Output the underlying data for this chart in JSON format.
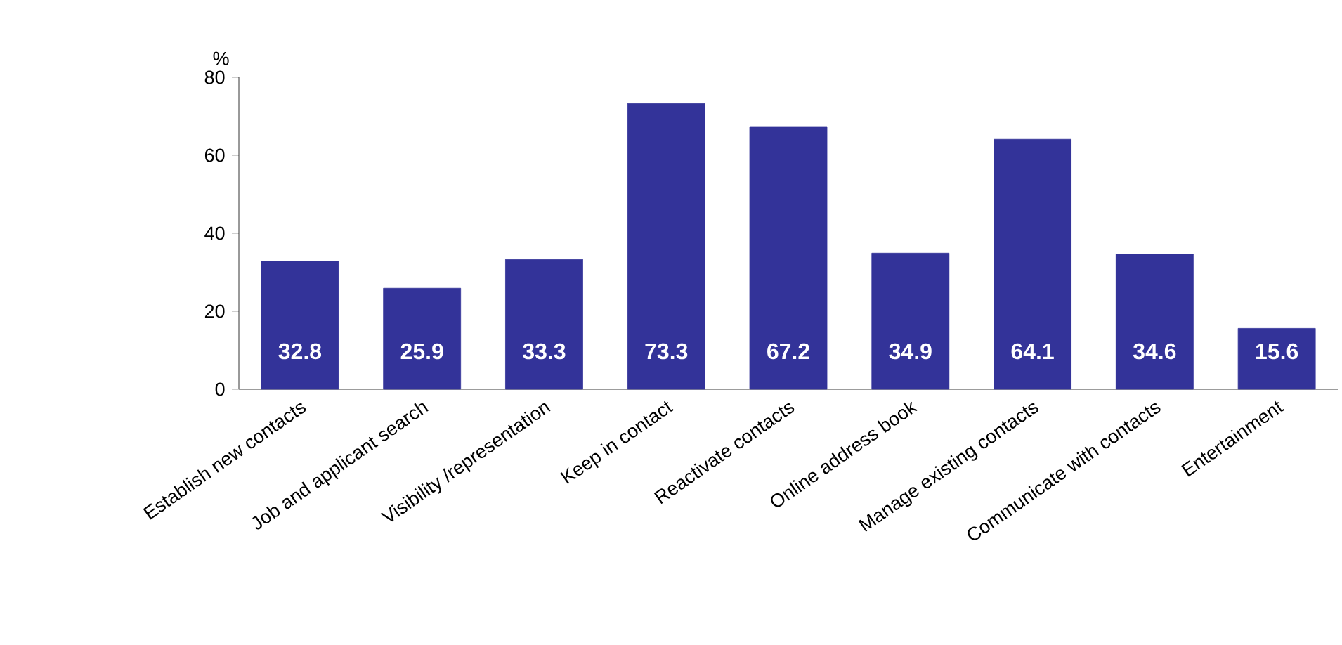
{
  "chart_data": {
    "type": "bar",
    "ylabel": "%",
    "categories": [
      "Establish new contacts",
      "Job and applicant search",
      "Visibility /representation",
      "Keep in contact",
      "Reactivate contacts",
      "Online address book",
      "Manage existing contacts",
      "Communicate with contacts",
      "Entertainment"
    ],
    "values": [
      32.8,
      25.9,
      33.3,
      73.3,
      67.2,
      34.9,
      64.1,
      34.6,
      15.6
    ],
    "color": "#333399",
    "data_labels": true,
    "ylim": [
      0,
      80
    ],
    "yticks": [
      0,
      20,
      40,
      60,
      80
    ]
  }
}
